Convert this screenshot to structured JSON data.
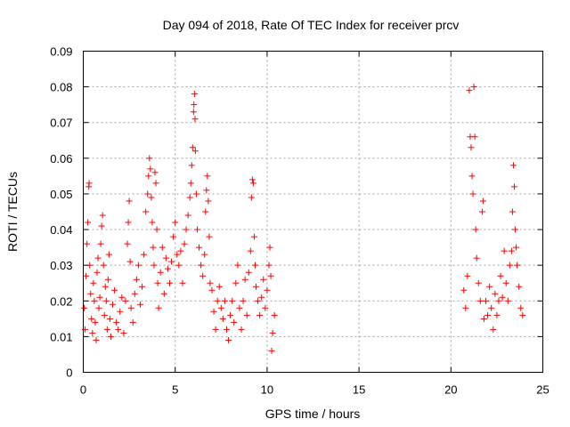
{
  "chart_data": {
    "type": "scatter",
    "title": "Day 094 of 2018, Rate Of TEC Index for receiver prcv",
    "xlabel": "GPS time / hours",
    "ylabel": "ROTI / TECUs",
    "xlim": [
      0,
      25
    ],
    "ylim": [
      0,
      0.09
    ],
    "xticks": [
      0,
      5,
      10,
      15,
      20,
      25
    ],
    "yticks": [
      0,
      0.01,
      0.02,
      0.03,
      0.04,
      0.05,
      0.06,
      0.07,
      0.08,
      0.09
    ],
    "xtick_labels": [
      "0",
      "5",
      "10",
      "15",
      "20",
      "25"
    ],
    "ytick_labels": [
      "0",
      "0.01",
      "0.02",
      "0.03",
      "0.04",
      "0.05",
      "0.06",
      "0.07",
      "0.08",
      "0.09"
    ],
    "grid": true,
    "marker": "+",
    "color": "#ff0000",
    "series": [
      {
        "name": "ROTI",
        "points": [
          [
            0.05,
            0.018
          ],
          [
            0.1,
            0.012
          ],
          [
            0.15,
            0.027
          ],
          [
            0.2,
            0.036
          ],
          [
            0.25,
            0.042
          ],
          [
            0.3,
            0.052
          ],
          [
            0.32,
            0.053
          ],
          [
            0.35,
            0.03
          ],
          [
            0.4,
            0.022
          ],
          [
            0.45,
            0.015
          ],
          [
            0.5,
            0.011
          ],
          [
            0.55,
            0.025
          ],
          [
            0.6,
            0.02
          ],
          [
            0.65,
            0.014
          ],
          [
            0.7,
            0.009
          ],
          [
            0.75,
            0.028
          ],
          [
            0.8,
            0.032
          ],
          [
            0.85,
            0.018
          ],
          [
            0.9,
            0.021
          ],
          [
            0.95,
            0.036
          ],
          [
            1.0,
            0.041
          ],
          [
            1.05,
            0.044
          ],
          [
            1.1,
            0.03
          ],
          [
            1.15,
            0.016
          ],
          [
            1.2,
            0.024
          ],
          [
            1.25,
            0.02
          ],
          [
            1.3,
            0.012
          ],
          [
            1.35,
            0.026
          ],
          [
            1.4,
            0.033
          ],
          [
            1.45,
            0.015
          ],
          [
            1.5,
            0.01
          ],
          [
            1.6,
            0.019
          ],
          [
            1.7,
            0.023
          ],
          [
            1.8,
            0.014
          ],
          [
            1.9,
            0.012
          ],
          [
            2.0,
            0.017
          ],
          [
            2.1,
            0.021
          ],
          [
            2.2,
            0.011
          ],
          [
            2.3,
            0.02
          ],
          [
            2.4,
            0.036
          ],
          [
            2.45,
            0.042
          ],
          [
            2.5,
            0.048
          ],
          [
            2.55,
            0.031
          ],
          [
            2.6,
            0.018
          ],
          [
            2.7,
            0.014
          ],
          [
            2.8,
            0.022
          ],
          [
            2.9,
            0.026
          ],
          [
            3.0,
            0.03
          ],
          [
            3.1,
            0.019
          ],
          [
            3.2,
            0.024
          ],
          [
            3.3,
            0.033
          ],
          [
            3.4,
            0.045
          ],
          [
            3.5,
            0.05
          ],
          [
            3.55,
            0.055
          ],
          [
            3.6,
            0.06
          ],
          [
            3.65,
            0.057
          ],
          [
            3.7,
            0.049
          ],
          [
            3.75,
            0.042
          ],
          [
            3.8,
            0.035
          ],
          [
            3.85,
            0.03
          ],
          [
            3.9,
            0.056
          ],
          [
            3.95,
            0.053
          ],
          [
            4.0,
            0.04
          ],
          [
            4.05,
            0.025
          ],
          [
            4.1,
            0.018
          ],
          [
            4.2,
            0.028
          ],
          [
            4.3,
            0.035
          ],
          [
            4.4,
            0.022
          ],
          [
            4.5,
            0.032
          ],
          [
            4.6,
            0.029
          ],
          [
            4.7,
            0.025
          ],
          [
            4.8,
            0.031
          ],
          [
            4.9,
            0.038
          ],
          [
            5.0,
            0.042
          ],
          [
            5.1,
            0.033
          ],
          [
            5.2,
            0.03
          ],
          [
            5.3,
            0.034
          ],
          [
            5.4,
            0.025
          ],
          [
            5.5,
            0.036
          ],
          [
            5.6,
            0.04
          ],
          [
            5.7,
            0.044
          ],
          [
            5.8,
            0.049
          ],
          [
            5.85,
            0.053
          ],
          [
            5.9,
            0.058
          ],
          [
            5.95,
            0.063
          ],
          [
            6.0,
            0.073
          ],
          [
            6.02,
            0.075
          ],
          [
            6.05,
            0.078
          ],
          [
            6.08,
            0.071
          ],
          [
            6.1,
            0.062
          ],
          [
            6.15,
            0.05
          ],
          [
            6.2,
            0.04
          ],
          [
            6.3,
            0.035
          ],
          [
            6.4,
            0.03
          ],
          [
            6.5,
            0.027
          ],
          [
            6.6,
            0.033
          ],
          [
            6.65,
            0.045
          ],
          [
            6.7,
            0.051
          ],
          [
            6.75,
            0.055
          ],
          [
            6.8,
            0.048
          ],
          [
            6.85,
            0.038
          ],
          [
            6.9,
            0.025
          ],
          [
            7.0,
            0.023
          ],
          [
            7.1,
            0.017
          ],
          [
            7.2,
            0.012
          ],
          [
            7.3,
            0.02
          ],
          [
            7.4,
            0.024
          ],
          [
            7.5,
            0.018
          ],
          [
            7.6,
            0.015
          ],
          [
            7.7,
            0.02
          ],
          [
            7.8,
            0.012
          ],
          [
            7.9,
            0.009
          ],
          [
            8.0,
            0.016
          ],
          [
            8.1,
            0.02
          ],
          [
            8.2,
            0.014
          ],
          [
            8.3,
            0.025
          ],
          [
            8.4,
            0.03
          ],
          [
            8.5,
            0.018
          ],
          [
            8.6,
            0.012
          ],
          [
            8.7,
            0.02
          ],
          [
            8.8,
            0.026
          ],
          [
            8.9,
            0.016
          ],
          [
            9.0,
            0.028
          ],
          [
            9.1,
            0.034
          ],
          [
            9.15,
            0.049
          ],
          [
            9.2,
            0.054
          ],
          [
            9.25,
            0.053
          ],
          [
            9.3,
            0.038
          ],
          [
            9.35,
            0.03
          ],
          [
            9.4,
            0.024
          ],
          [
            9.5,
            0.02
          ],
          [
            9.6,
            0.016
          ],
          [
            9.7,
            0.021
          ],
          [
            9.8,
            0.026
          ],
          [
            9.9,
            0.018
          ],
          [
            10.0,
            0.023
          ],
          [
            10.1,
            0.03
          ],
          [
            10.15,
            0.035
          ],
          [
            10.2,
            0.027
          ],
          [
            10.25,
            0.006
          ],
          [
            10.3,
            0.011
          ],
          [
            10.4,
            0.016
          ],
          [
            20.7,
            0.023
          ],
          [
            20.8,
            0.018
          ],
          [
            20.9,
            0.027
          ],
          [
            21.0,
            0.079
          ],
          [
            21.05,
            0.066
          ],
          [
            21.1,
            0.063
          ],
          [
            21.15,
            0.055
          ],
          [
            21.2,
            0.05
          ],
          [
            21.25,
            0.08
          ],
          [
            21.3,
            0.066
          ],
          [
            21.35,
            0.04
          ],
          [
            21.4,
            0.032
          ],
          [
            21.5,
            0.025
          ],
          [
            21.6,
            0.02
          ],
          [
            21.7,
            0.045
          ],
          [
            21.75,
            0.048
          ],
          [
            21.8,
            0.015
          ],
          [
            21.9,
            0.02
          ],
          [
            22.0,
            0.016
          ],
          [
            22.1,
            0.024
          ],
          [
            22.2,
            0.018
          ],
          [
            22.3,
            0.012
          ],
          [
            22.4,
            0.022
          ],
          [
            22.5,
            0.016
          ],
          [
            22.6,
            0.02
          ],
          [
            22.7,
            0.027
          ],
          [
            22.8,
            0.021
          ],
          [
            22.9,
            0.034
          ],
          [
            23.0,
            0.025
          ],
          [
            23.1,
            0.02
          ],
          [
            23.2,
            0.03
          ],
          [
            23.3,
            0.034
          ],
          [
            23.35,
            0.045
          ],
          [
            23.4,
            0.058
          ],
          [
            23.45,
            0.052
          ],
          [
            23.5,
            0.04
          ],
          [
            23.55,
            0.035
          ],
          [
            23.6,
            0.03
          ],
          [
            23.7,
            0.024
          ],
          [
            23.8,
            0.018
          ],
          [
            23.9,
            0.016
          ]
        ]
      }
    ]
  }
}
